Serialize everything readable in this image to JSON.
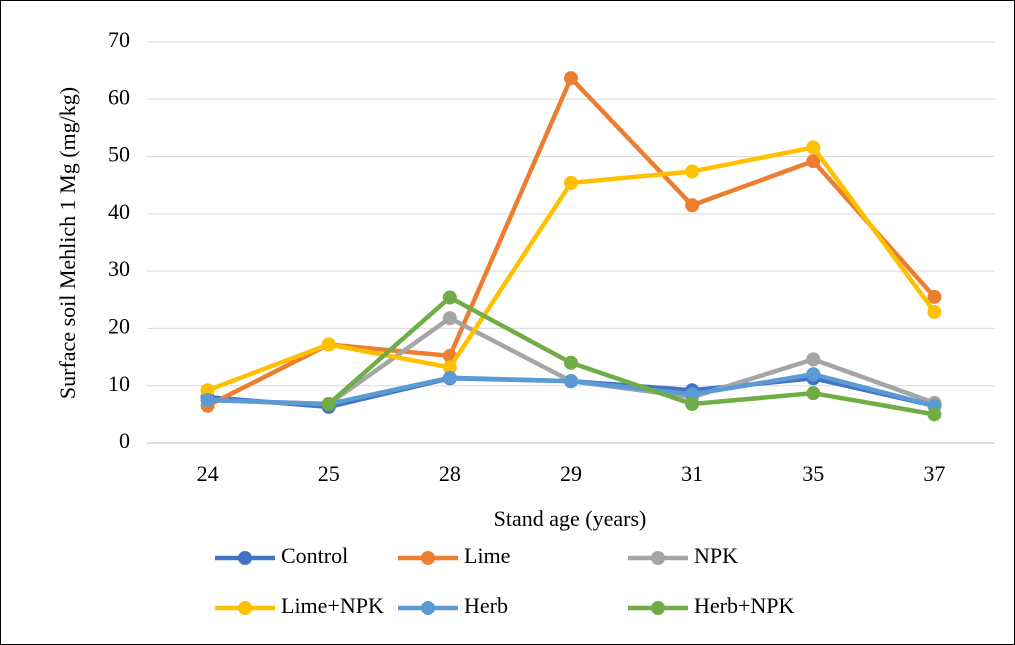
{
  "chart_data": {
    "type": "line",
    "x_label": "Stand age (years)",
    "y_label": "Surface soil Mehlich 1 Mg (mg/kg)",
    "categories": [
      "24",
      "25",
      "28",
      "29",
      "31",
      "35",
      "37"
    ],
    "ylim": [
      0,
      70
    ],
    "yticks": [
      0,
      10,
      20,
      30,
      40,
      50,
      60,
      70
    ],
    "grid": true,
    "legend": "bottom",
    "series": [
      {
        "name": "Control",
        "color": "#4472c4",
        "values": [
          8.0,
          6.3,
          11.3,
          10.8,
          9.2,
          11.3,
          6.5
        ]
      },
      {
        "name": "Lime",
        "color": "#ed7d31",
        "values": [
          6.5,
          17.2,
          15.2,
          63.7,
          41.5,
          49.2,
          25.5
        ]
      },
      {
        "name": "NPK",
        "color": "#a5a5a5",
        "values": [
          7.5,
          6.8,
          21.8,
          10.8,
          8.0,
          14.6,
          7.0
        ]
      },
      {
        "name": "Lime+NPK",
        "color": "#ffc000",
        "values": [
          9.2,
          17.2,
          13.2,
          45.4,
          47.4,
          51.6,
          22.9
        ]
      },
      {
        "name": "Herb",
        "color": "#5b9bd5",
        "values": [
          7.5,
          6.8,
          11.4,
          10.8,
          8.5,
          12.0,
          6.5
        ]
      },
      {
        "name": "Herb+NPK",
        "color": "#70ad47",
        "values": [
          null,
          6.8,
          25.4,
          14.0,
          6.8,
          8.7,
          5.0
        ]
      }
    ]
  }
}
